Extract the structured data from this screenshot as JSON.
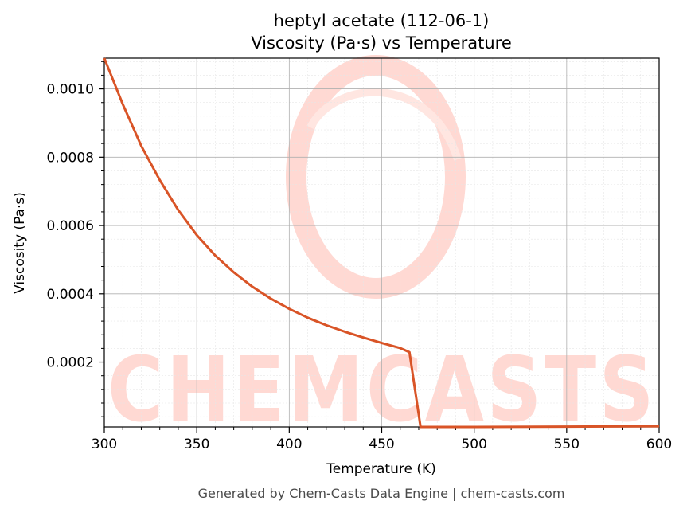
{
  "chart_data": {
    "type": "line",
    "title": "heptyl acetate (112-06-1)",
    "subtitle": "Viscosity (Pa·s) vs Temperature",
    "xlabel": "Temperature (K)",
    "ylabel": "Viscosity (Pa·s)",
    "xlim": [
      300,
      600
    ],
    "ylim": [
      1e-05,
      0.00109
    ],
    "x_ticks": [
      300,
      350,
      400,
      450,
      500,
      550,
      600
    ],
    "y_ticks": [
      0.0002,
      0.0004,
      0.0006,
      0.0008,
      0.001
    ],
    "y_tick_labels": [
      "0.0002",
      "0.0004",
      "0.0006",
      "0.0008",
      "0.0010"
    ],
    "grid": true,
    "line_color": "#d95427",
    "series": [
      {
        "x": [
          300,
          310,
          320,
          330,
          340,
          350,
          360,
          370,
          380,
          390,
          400,
          410,
          420,
          430,
          440,
          450,
          460,
          465,
          471,
          500,
          550,
          600
        ],
        "values": [
          0.00109,
          0.000955,
          0.000833,
          0.000733,
          0.000645,
          0.000572,
          0.000512,
          0.000463,
          0.000421,
          0.000386,
          0.000356,
          0.00033,
          0.000308,
          0.000289,
          0.000272,
          0.000256,
          0.000241,
          0.000229,
          1e-05,
          1e-05,
          1.1e-05,
          1.2e-05
        ]
      }
    ]
  },
  "watermark": {
    "text": "CHEMCASTS",
    "color": "#ffd9d3"
  },
  "footer": "Generated by Chem-Casts Data Engine | chem-casts.com"
}
